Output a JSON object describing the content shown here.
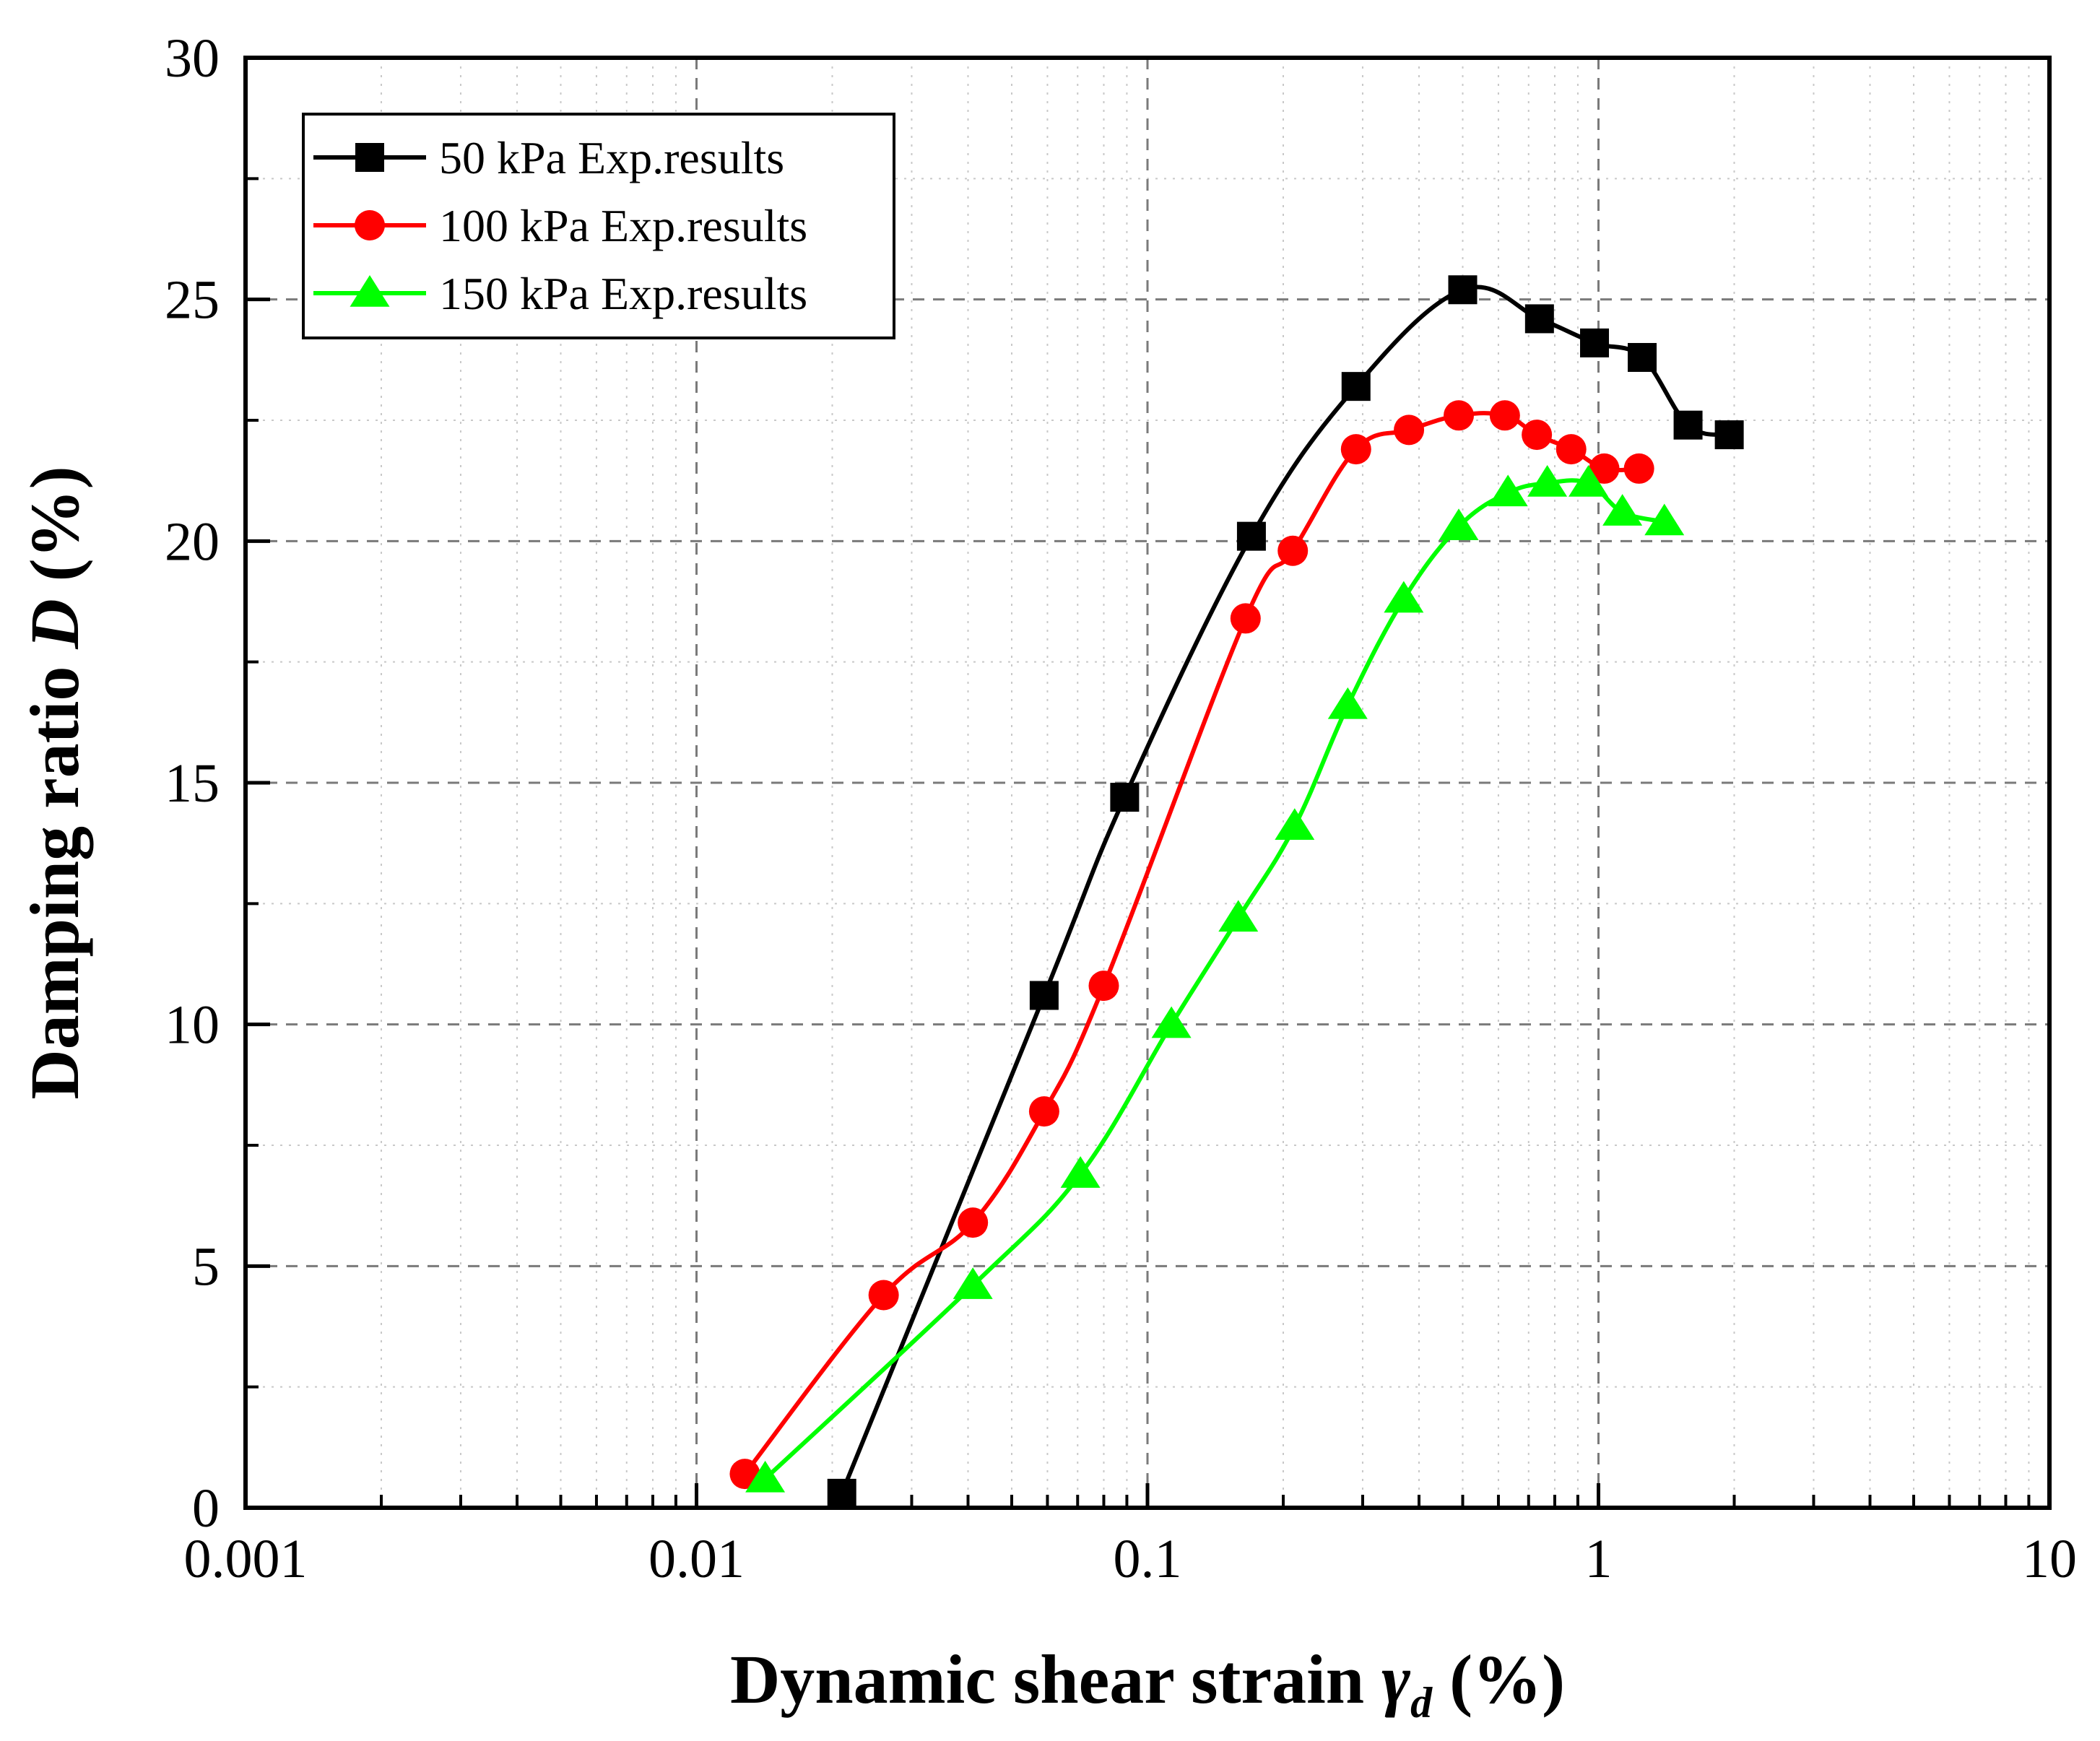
{
  "chart_data": {
    "type": "line",
    "title": "",
    "xlabel": {
      "prefix": "Dynamic shear strain ",
      "symbol": "γ",
      "subscript": "d",
      "suffix": " (%)"
    },
    "ylabel": {
      "prefix": "Damping ratio ",
      "symbol": "D",
      "suffix": " (%)"
    },
    "xscale": "log",
    "xlim": [
      0.001,
      10
    ],
    "ylim": [
      0,
      30
    ],
    "xticks": [
      {
        "value": 0.001,
        "label": "0.001"
      },
      {
        "value": 0.01,
        "label": "0.01"
      },
      {
        "value": 0.1,
        "label": "0.1"
      },
      {
        "value": 1,
        "label": "1"
      },
      {
        "value": 10,
        "label": "10"
      }
    ],
    "yticks": [
      {
        "value": 0,
        "label": "0"
      },
      {
        "value": 5,
        "label": "5"
      },
      {
        "value": 10,
        "label": "10"
      },
      {
        "value": 15,
        "label": "15"
      },
      {
        "value": 20,
        "label": "20"
      },
      {
        "value": 25,
        "label": "25"
      },
      {
        "value": 30,
        "label": "30"
      }
    ],
    "grid": true,
    "legend_position": "top-left",
    "series": [
      {
        "name": "50 kPa Exp.results",
        "color": "#000000",
        "marker": "square",
        "x": [
          0.021,
          0.059,
          0.089,
          0.17,
          0.29,
          0.5,
          0.74,
          0.98,
          1.25,
          1.58,
          1.95
        ],
        "y": [
          0.3,
          10.6,
          14.7,
          20.1,
          23.2,
          25.2,
          24.6,
          24.1,
          23.8,
          22.4,
          22.2
        ]
      },
      {
        "name": "100 kPa Exp.results",
        "color": "#ff0000",
        "marker": "circle",
        "x": [
          0.0128,
          0.026,
          0.041,
          0.059,
          0.08,
          0.165,
          0.21,
          0.29,
          0.38,
          0.49,
          0.62,
          0.73,
          0.87,
          1.03,
          1.23
        ],
        "y": [
          0.7,
          4.4,
          5.9,
          8.2,
          10.8,
          18.4,
          19.8,
          21.9,
          22.3,
          22.6,
          22.6,
          22.2,
          21.9,
          21.5,
          21.5
        ]
      },
      {
        "name": "150 kPa Exp.results",
        "color": "#00ff00",
        "marker": "triangle",
        "x": [
          0.0142,
          0.041,
          0.071,
          0.113,
          0.159,
          0.212,
          0.278,
          0.37,
          0.49,
          0.63,
          0.77,
          0.95,
          1.13,
          1.4
        ],
        "y": [
          0.6,
          4.6,
          6.9,
          10.0,
          12.2,
          14.1,
          16.6,
          18.8,
          20.3,
          21.0,
          21.2,
          21.2,
          20.6,
          20.4
        ]
      }
    ]
  }
}
